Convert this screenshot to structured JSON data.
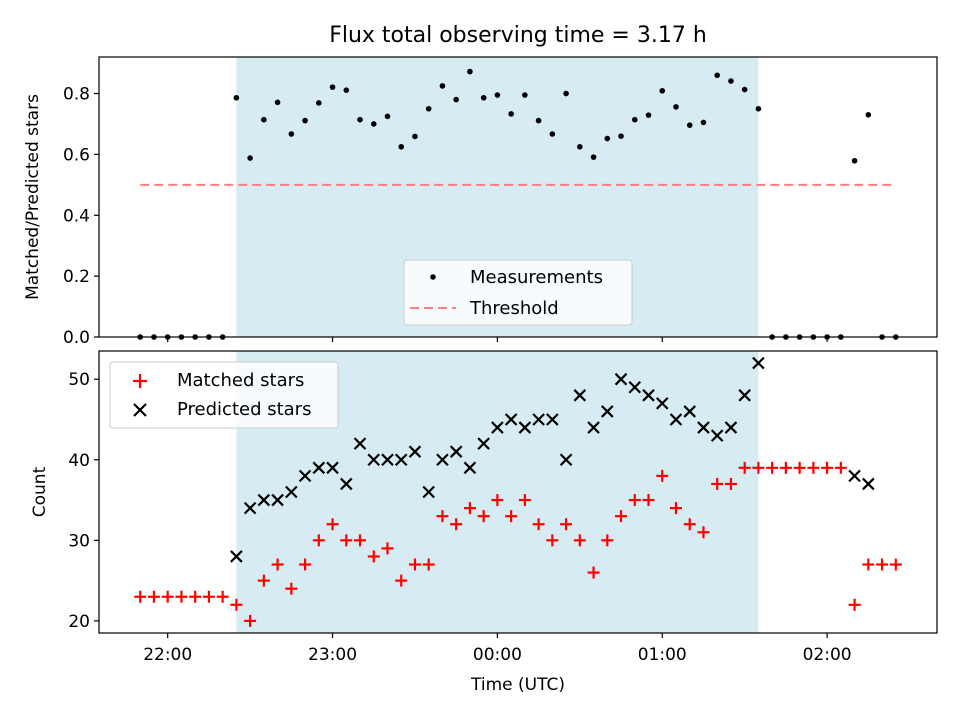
{
  "chart_data": [
    {
      "type": "scatter",
      "title": "Flux total observing time = 3.17 h",
      "xlabel": "",
      "ylabel": "Matched/Predicted stars",
      "ylim": [
        0,
        0.92
      ],
      "yticks": [
        "0.0",
        "0.2",
        "0.4",
        "0.6",
        "0.8"
      ],
      "ytick_values": [
        0,
        0.2,
        0.4,
        0.6,
        0.8
      ],
      "shaded_region": {
        "start": "22:25",
        "end": "01:35",
        "color": "#add8e6"
      },
      "legend_position": "lower center",
      "series": [
        {
          "name": "Measurements",
          "marker": "dot",
          "color": "#000000",
          "x": [
            "21:50",
            "21:55",
            "22:00",
            "22:05",
            "22:10",
            "22:15",
            "22:20",
            "22:25",
            "22:30",
            "22:35",
            "22:40",
            "22:45",
            "22:50",
            "22:55",
            "23:00",
            "23:05",
            "23:10",
            "23:15",
            "23:20",
            "23:25",
            "23:30",
            "23:35",
            "23:40",
            "23:45",
            "23:50",
            "23:55",
            "00:00",
            "00:05",
            "00:10",
            "00:15",
            "00:20",
            "00:25",
            "00:30",
            "00:35",
            "00:40",
            "00:45",
            "00:50",
            "00:55",
            "01:00",
            "01:05",
            "01:10",
            "01:15",
            "01:20",
            "01:25",
            "01:30",
            "01:35",
            "01:40",
            "01:45",
            "01:50",
            "01:55",
            "02:00",
            "02:05",
            "02:10",
            "02:15",
            "02:20",
            "02:25"
          ],
          "y": [
            0,
            0,
            0,
            0,
            0,
            0,
            0,
            0.786,
            0.588,
            0.714,
            0.771,
            0.667,
            0.711,
            0.769,
            0.821,
            0.811,
            0.714,
            0.7,
            0.725,
            0.625,
            0.659,
            0.75,
            0.825,
            0.78,
            0.872,
            0.786,
            0.795,
            0.733,
            0.795,
            0.711,
            0.667,
            0.8,
            0.625,
            0.591,
            0.652,
            0.66,
            0.714,
            0.729,
            0.809,
            0.756,
            0.696,
            0.705,
            0.86,
            0.841,
            0.813,
            0.75,
            0,
            0,
            0,
            0,
            0,
            0,
            0.579,
            0.73,
            0,
            0
          ]
        },
        {
          "name": "Threshold",
          "marker": "dashed-line",
          "color": "#ff7f7f",
          "x": [
            "21:50",
            "02:25"
          ],
          "y": [
            0.5,
            0.5
          ]
        }
      ]
    },
    {
      "type": "scatter",
      "title": "",
      "xlabel": "Time (UTC)",
      "ylabel": "Count",
      "ylim": [
        18.5,
        53.5
      ],
      "yticks": [
        "20",
        "30",
        "40",
        "50"
      ],
      "ytick_values": [
        20,
        30,
        40,
        50
      ],
      "xticks": [
        "22:00",
        "23:00",
        "00:00",
        "01:00",
        "02:00"
      ],
      "xtick_times": [
        "22:00",
        "23:00",
        "00:00",
        "01:00",
        "02:00"
      ],
      "xlim": [
        "21:35",
        "02:40"
      ],
      "shaded_region": {
        "start": "22:25",
        "end": "01:35",
        "color": "#add8e6"
      },
      "legend_position": "upper left",
      "series": [
        {
          "name": "Matched stars",
          "marker": "plus",
          "color": "#ff0000",
          "x": [
            "21:50",
            "21:55",
            "22:00",
            "22:05",
            "22:10",
            "22:15",
            "22:20",
            "22:25",
            "22:30",
            "22:35",
            "22:40",
            "22:45",
            "22:50",
            "22:55",
            "23:00",
            "23:05",
            "23:10",
            "23:15",
            "23:20",
            "23:25",
            "23:30",
            "23:35",
            "23:40",
            "23:45",
            "23:50",
            "23:55",
            "00:00",
            "00:05",
            "00:10",
            "00:15",
            "00:20",
            "00:25",
            "00:30",
            "00:35",
            "00:40",
            "00:45",
            "00:50",
            "00:55",
            "01:00",
            "01:05",
            "01:10",
            "01:15",
            "01:20",
            "01:25",
            "01:30",
            "01:35",
            "01:40",
            "01:45",
            "01:50",
            "01:55",
            "02:00",
            "02:05",
            "02:10",
            "02:15",
            "02:20",
            "02:25"
          ],
          "y": [
            23,
            23,
            23,
            23,
            23,
            23,
            23,
            22,
            20,
            25,
            27,
            24,
            27,
            30,
            32,
            30,
            30,
            28,
            29,
            25,
            27,
            27,
            33,
            32,
            34,
            33,
            35,
            33,
            35,
            32,
            30,
            32,
            30,
            26,
            30,
            33,
            35,
            35,
            38,
            34,
            32,
            31,
            37,
            37,
            39,
            39,
            39,
            39,
            39,
            39,
            39,
            39,
            22,
            27,
            27,
            27
          ]
        },
        {
          "name": "Predicted stars",
          "marker": "x",
          "color": "#000000",
          "x": [
            "22:25",
            "22:30",
            "22:35",
            "22:40",
            "22:45",
            "22:50",
            "22:55",
            "23:00",
            "23:05",
            "23:10",
            "23:15",
            "23:20",
            "23:25",
            "23:30",
            "23:35",
            "23:40",
            "23:45",
            "23:50",
            "23:55",
            "00:00",
            "00:05",
            "00:10",
            "00:15",
            "00:20",
            "00:25",
            "00:30",
            "00:35",
            "00:40",
            "00:45",
            "00:50",
            "00:55",
            "01:00",
            "01:05",
            "01:10",
            "01:15",
            "01:20",
            "01:25",
            "01:30",
            "01:35",
            "02:10",
            "02:15"
          ],
          "y": [
            28,
            34,
            35,
            35,
            36,
            38,
            39,
            39,
            37,
            42,
            40,
            40,
            40,
            41,
            36,
            40,
            41,
            39,
            42,
            44,
            45,
            44,
            45,
            45,
            40,
            48,
            44,
            46,
            50,
            49,
            48,
            47,
            45,
            46,
            44,
            43,
            44,
            48,
            52,
            38,
            37
          ]
        }
      ]
    }
  ]
}
